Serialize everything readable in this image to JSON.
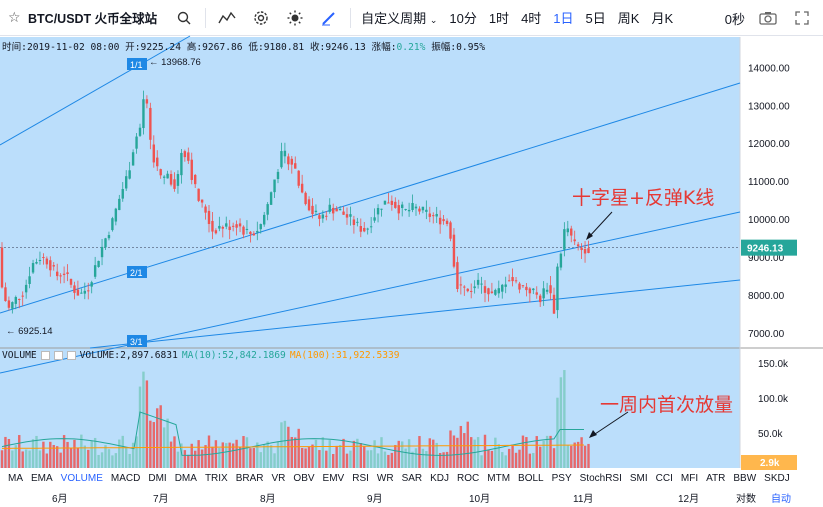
{
  "toolbar": {
    "symbol": "BTC/USDT 火币全球站",
    "custom_period": "自定义周期",
    "periods": [
      "10分",
      "1时",
      "4时",
      "1日",
      "5日",
      "周K",
      "月K"
    ],
    "active_period": "1日",
    "countdown": "0秒"
  },
  "ohlc": {
    "time": "时间:2019-11-02 08:00",
    "open": "开:9225.24",
    "high": "高:9267.86",
    "low": "低:9180.81",
    "close": "收:9246.13",
    "change_label": "涨幅:",
    "change_value": "0.21%",
    "amp": "振幅:0.95%"
  },
  "volume_legend": {
    "title": "VOLUME",
    "value": "VOLUME:2,897.6831",
    "ma10": "MA(10):52,842.1869",
    "ma100": "MA(100):31,922.5339"
  },
  "chart_data": {
    "type": "candlestick",
    "price_axis": {
      "ticks": [
        "14000.00",
        "13000.00",
        "12000.00",
        "11000.00",
        "10000.00",
        "9000.00",
        "8000.00",
        "7000.00"
      ],
      "range": [
        6600,
        14800
      ],
      "current": "9246.13"
    },
    "volume_axis": {
      "ticks": [
        "150.0k",
        "100.0k",
        "50.0k"
      ],
      "current": "2.9k"
    },
    "x_ticks": [
      "6月",
      "7月",
      "8月",
      "9月",
      "10月",
      "11月",
      "12月"
    ],
    "annotations": {
      "high": "13968.76",
      "low": "6925.14"
    },
    "fan_labels": [
      "1/1",
      "2/1",
      "3/1"
    ],
    "colors": {
      "up": "#26a69a",
      "down": "#ef5350",
      "background": "#bbdefb",
      "fan": "#1e88e5"
    }
  },
  "indicators": [
    "MA",
    "EMA",
    "VOLUME",
    "MACD",
    "DMI",
    "DMA",
    "TRIX",
    "BRAR",
    "VR",
    "OBV",
    "EMV",
    "RSI",
    "WR",
    "SAR",
    "KDJ",
    "ROC",
    "MTM",
    "BOLL",
    "PSY",
    "StochRSI",
    "SMI",
    "CCI",
    "MFI",
    "ATR",
    "BBW",
    "SKDJ"
  ],
  "active_indicator": "VOLUME",
  "axis_controls": {
    "log": "对数",
    "auto": "自动"
  },
  "notes": {
    "doji": "十字星+反弹K线",
    "volume": "一周内首次放量"
  }
}
